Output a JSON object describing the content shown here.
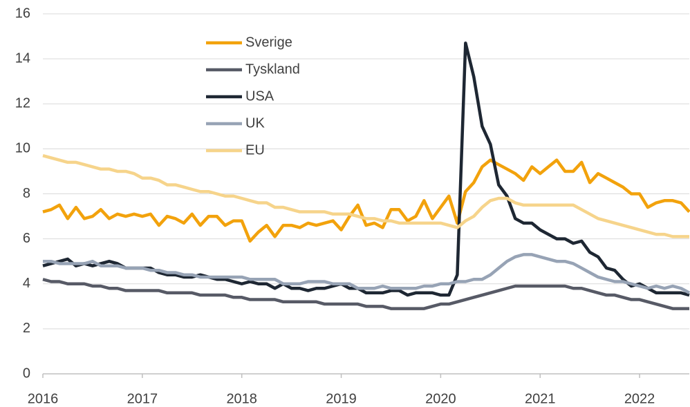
{
  "chart_data": {
    "type": "line",
    "x": [
      2016,
      2016.083,
      2016.167,
      2016.25,
      2016.333,
      2016.417,
      2016.5,
      2016.583,
      2016.667,
      2016.75,
      2016.833,
      2016.917,
      2017,
      2017.083,
      2017.167,
      2017.25,
      2017.333,
      2017.417,
      2017.5,
      2017.583,
      2017.667,
      2017.75,
      2017.833,
      2017.917,
      2018,
      2018.083,
      2018.167,
      2018.25,
      2018.333,
      2018.417,
      2018.5,
      2018.583,
      2018.667,
      2018.75,
      2018.833,
      2018.917,
      2019,
      2019.083,
      2019.167,
      2019.25,
      2019.333,
      2019.417,
      2019.5,
      2019.583,
      2019.667,
      2019.75,
      2019.833,
      2019.917,
      2020,
      2020.083,
      2020.167,
      2020.25,
      2020.333,
      2020.417,
      2020.5,
      2020.583,
      2020.667,
      2020.75,
      2020.833,
      2020.917,
      2021,
      2021.083,
      2021.167,
      2021.25,
      2021.333,
      2021.417,
      2021.5,
      2021.583,
      2021.667,
      2021.75,
      2021.833,
      2021.917,
      2022,
      2022.083,
      2022.167,
      2022.25,
      2022.333,
      2022.417,
      2022.5
    ],
    "series": [
      {
        "name": "Sverige",
        "color": "#f2a20c",
        "values": [
          7.2,
          7.3,
          7.5,
          6.9,
          7.4,
          6.9,
          7.0,
          7.3,
          6.9,
          7.1,
          7.0,
          7.1,
          7.0,
          7.1,
          6.6,
          7.0,
          6.9,
          6.7,
          7.1,
          6.6,
          7.0,
          7.0,
          6.6,
          6.8,
          6.8,
          5.9,
          6.3,
          6.6,
          6.1,
          6.6,
          6.6,
          6.5,
          6.7,
          6.6,
          6.7,
          6.8,
          6.4,
          7.0,
          7.5,
          6.6,
          6.7,
          6.5,
          7.3,
          7.3,
          6.8,
          7.0,
          7.7,
          6.9,
          7.4,
          7.9,
          6.7,
          8.1,
          8.5,
          9.2,
          9.5,
          9.3,
          9.1,
          8.9,
          8.6,
          9.2,
          8.9,
          9.2,
          9.5,
          9.0,
          9.0,
          9.4,
          8.5,
          8.9,
          8.7,
          8.5,
          8.3,
          8.0,
          8.0,
          7.4,
          7.6,
          7.7,
          7.7,
          7.6,
          7.2
        ]
      },
      {
        "name": "Tyskland",
        "color": "#575a66",
        "values": [
          4.2,
          4.1,
          4.1,
          4.0,
          4.0,
          4.0,
          3.9,
          3.9,
          3.8,
          3.8,
          3.7,
          3.7,
          3.7,
          3.7,
          3.7,
          3.6,
          3.6,
          3.6,
          3.6,
          3.5,
          3.5,
          3.5,
          3.5,
          3.4,
          3.4,
          3.3,
          3.3,
          3.3,
          3.3,
          3.2,
          3.2,
          3.2,
          3.2,
          3.2,
          3.1,
          3.1,
          3.1,
          3.1,
          3.1,
          3.0,
          3.0,
          3.0,
          2.9,
          2.9,
          2.9,
          2.9,
          2.9,
          3.0,
          3.1,
          3.1,
          3.2,
          3.3,
          3.4,
          3.5,
          3.6,
          3.7,
          3.8,
          3.9,
          3.9,
          3.9,
          3.9,
          3.9,
          3.9,
          3.9,
          3.8,
          3.8,
          3.7,
          3.6,
          3.5,
          3.5,
          3.4,
          3.3,
          3.3,
          3.2,
          3.1,
          3.0,
          2.9,
          2.9,
          2.9
        ]
      },
      {
        "name": "USA",
        "color": "#1e2733",
        "values": [
          4.8,
          4.9,
          5.0,
          5.1,
          4.8,
          4.9,
          4.8,
          4.9,
          5.0,
          4.9,
          4.7,
          4.7,
          4.7,
          4.7,
          4.5,
          4.4,
          4.4,
          4.3,
          4.3,
          4.4,
          4.3,
          4.2,
          4.2,
          4.1,
          4.0,
          4.1,
          4.0,
          4.0,
          3.8,
          4.0,
          3.8,
          3.8,
          3.7,
          3.8,
          3.8,
          3.9,
          4.0,
          3.8,
          3.8,
          3.6,
          3.6,
          3.6,
          3.7,
          3.7,
          3.5,
          3.6,
          3.6,
          3.6,
          3.5,
          3.5,
          4.4,
          14.7,
          13.2,
          11.0,
          10.2,
          8.4,
          7.9,
          6.9,
          6.7,
          6.7,
          6.4,
          6.2,
          6.0,
          6.0,
          5.8,
          5.9,
          5.4,
          5.2,
          4.7,
          4.6,
          4.2,
          3.9,
          4.0,
          3.8,
          3.6,
          3.6,
          3.6,
          3.6,
          3.5
        ]
      },
      {
        "name": "UK",
        "color": "#97a3b5",
        "values": [
          5.0,
          5.0,
          4.9,
          4.9,
          4.9,
          4.9,
          5.0,
          4.8,
          4.8,
          4.8,
          4.7,
          4.7,
          4.7,
          4.6,
          4.6,
          4.5,
          4.5,
          4.4,
          4.4,
          4.3,
          4.3,
          4.3,
          4.3,
          4.3,
          4.3,
          4.2,
          4.2,
          4.2,
          4.2,
          4.0,
          4.0,
          4.0,
          4.1,
          4.1,
          4.1,
          4.0,
          4.0,
          4.0,
          3.8,
          3.8,
          3.8,
          3.9,
          3.8,
          3.8,
          3.8,
          3.8,
          3.9,
          3.9,
          4.0,
          4.0,
          4.1,
          4.1,
          4.2,
          4.2,
          4.4,
          4.7,
          5.0,
          5.2,
          5.3,
          5.3,
          5.2,
          5.1,
          5.0,
          5.0,
          4.9,
          4.7,
          4.5,
          4.3,
          4.2,
          4.1,
          4.1,
          4.0,
          3.9,
          3.8,
          3.9,
          3.8,
          3.9,
          3.8,
          3.6
        ]
      },
      {
        "name": "EU",
        "color": "#f6d48b",
        "values": [
          9.7,
          9.6,
          9.5,
          9.4,
          9.4,
          9.3,
          9.2,
          9.1,
          9.1,
          9.0,
          9.0,
          8.9,
          8.7,
          8.7,
          8.6,
          8.4,
          8.4,
          8.3,
          8.2,
          8.1,
          8.1,
          8.0,
          7.9,
          7.9,
          7.8,
          7.7,
          7.6,
          7.6,
          7.4,
          7.4,
          7.3,
          7.2,
          7.2,
          7.2,
          7.2,
          7.1,
          7.1,
          7.1,
          7.0,
          6.9,
          6.9,
          6.8,
          6.8,
          6.7,
          6.7,
          6.7,
          6.7,
          6.7,
          6.7,
          6.6,
          6.5,
          6.8,
          7.0,
          7.4,
          7.7,
          7.8,
          7.8,
          7.6,
          7.5,
          7.5,
          7.5,
          7.5,
          7.5,
          7.5,
          7.5,
          7.3,
          7.1,
          6.9,
          6.8,
          6.7,
          6.6,
          6.5,
          6.4,
          6.3,
          6.2,
          6.2,
          6.1,
          6.1,
          6.1
        ]
      }
    ],
    "xlim": [
      2016,
      2022.5
    ],
    "xticks": [
      2016,
      2017,
      2018,
      2019,
      2020,
      2021,
      2022
    ],
    "ylim": [
      0,
      16
    ],
    "yticks": [
      0,
      2,
      4,
      6,
      8,
      10,
      12,
      14,
      16
    ],
    "grid": true,
    "legend": "top-center"
  }
}
